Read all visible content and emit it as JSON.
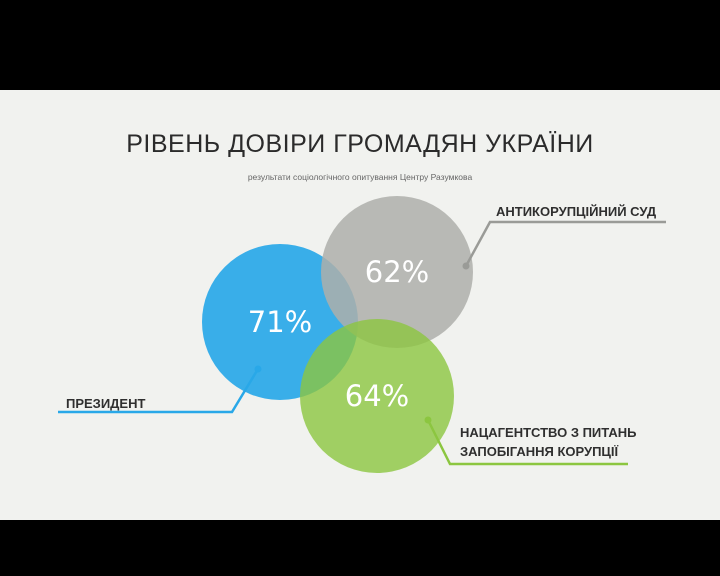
{
  "title": "РІВЕНЬ ДОВІРИ ГРОМАДЯН УКРАЇНИ",
  "subtitle": "результати соціологічного опитування Центру Разумкова",
  "chart_data": {
    "type": "venn",
    "unit": "%",
    "series": [
      {
        "name": "ПРЕЗИДЕНТ",
        "label_lines": [
          "ПРЕЗИДЕНТ"
        ],
        "value": 71,
        "value_label": "71%",
        "color": "#29a8e8"
      },
      {
        "name": "АНТИКОРУПЦІЙНИЙ СУД",
        "label_lines": [
          "АНТИКОРУПЦІЙНИЙ СУД"
        ],
        "value": 62,
        "value_label": "62%",
        "color": "#aeafaa"
      },
      {
        "name": "НАЦАГЕНТСТВО З ПИТАНЬ ЗАПОБІГАННЯ КОРУПЦІЇ",
        "label_lines": [
          "НАЦАГЕНТСТВО З ПИТАНЬ",
          "ЗАПОБІГАННЯ КОРУПЦІЇ"
        ],
        "value": 64,
        "value_label": "64%",
        "color": "#8cc640"
      }
    ]
  }
}
